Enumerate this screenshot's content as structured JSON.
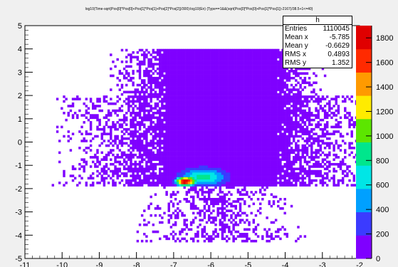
{
  "chart_data": {
    "type": "heatmap",
    "title": "log10(Time-sqrt(Pos[0]*Pos[0]+Pos[1]*Pos[1]+Pos[2]*Pos[2])/300):log10(En) {Type==1&&(sqrt(Pos[0]*Pos[0]+Pos[1]*Pos[1])-2167)/38.5+1<=40}",
    "xlabel": "",
    "ylabel": "",
    "xlim": [
      -11,
      -2
    ],
    "ylim": [
      -5,
      5
    ],
    "x_ticks": [
      "-11",
      "-10",
      "-9",
      "-8",
      "-7",
      "-6",
      "-5",
      "-4",
      "-3",
      "-2"
    ],
    "y_ticks": [
      "-5",
      "-4",
      "-3",
      "-2",
      "-1",
      "0",
      "1",
      "2",
      "3",
      "4",
      "5"
    ],
    "z_range": [
      0,
      1900
    ],
    "z_ticks": [
      "0",
      "200",
      "400",
      "600",
      "800",
      "1000",
      "1200",
      "1400",
      "1600",
      "1800"
    ],
    "colormap": [
      "#7f00ff",
      "#3b3bff",
      "#00a0ff",
      "#00e6e6",
      "#00e68c",
      "#5ce600",
      "#ffeb00",
      "#ff9a00",
      "#ff2a00",
      "#e00000"
    ],
    "grid": false,
    "regions": [
      {
        "name": "scatter-envelope",
        "x_range": [
          -10.2,
          -2.6
        ],
        "y_range": [
          -4.3,
          4.0
        ],
        "level": 1
      },
      {
        "name": "upper-band",
        "x_range": [
          -7.2,
          -4.2
        ],
        "y_range": [
          -1.9,
          4.0
        ],
        "level": 40
      },
      {
        "name": "upper-blob",
        "center": [
          -5.9,
          3.3
        ],
        "level": 150
      },
      {
        "name": "lower-hook",
        "center": [
          -6.2,
          -1.5
        ],
        "level": 900
      },
      {
        "name": "peak",
        "center": [
          -6.7,
          -1.7
        ],
        "level": 1800
      }
    ]
  },
  "stats_box": {
    "name": "h",
    "rows": [
      {
        "label": "Entries",
        "value": "1110045"
      },
      {
        "label": "Mean x",
        "value": "-5.785"
      },
      {
        "label": "Mean y",
        "value": "-0.6629"
      },
      {
        "label": "RMS x",
        "value": "0.4893"
      },
      {
        "label": "RMS y",
        "value": "1.352"
      }
    ]
  }
}
